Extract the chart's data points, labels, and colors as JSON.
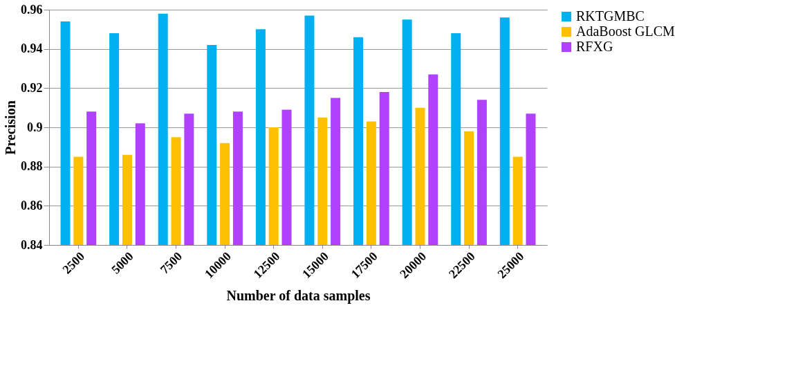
{
  "chart_data": {
    "type": "bar",
    "xlabel": "Number of data samples",
    "ylabel": "Precision",
    "categories": [
      "2500",
      "5000",
      "7500",
      "10000",
      "12500",
      "15000",
      "17500",
      "20000",
      "22500",
      "25000"
    ],
    "series": [
      {
        "name": "RKTGMBC",
        "color": "#00b0f0",
        "values": [
          0.954,
          0.948,
          0.958,
          0.942,
          0.95,
          0.957,
          0.946,
          0.955,
          0.948,
          0.956
        ]
      },
      {
        "name": "AdaBoost GLCM",
        "color": "#ffc000",
        "values": [
          0.885,
          0.886,
          0.895,
          0.892,
          0.9,
          0.905,
          0.903,
          0.91,
          0.898,
          0.885
        ]
      },
      {
        "name": "RFXG",
        "color": "#b041ff",
        "values": [
          0.908,
          0.902,
          0.907,
          0.908,
          0.909,
          0.915,
          0.918,
          0.927,
          0.914,
          0.907
        ]
      }
    ],
    "ylim": [
      0.84,
      0.96
    ],
    "yticks": [
      0.84,
      0.86,
      0.88,
      {
        "value": 0.9,
        "label": "0.9"
      },
      0.92,
      0.94,
      0.96
    ],
    "grid": "y",
    "legend": "right"
  }
}
